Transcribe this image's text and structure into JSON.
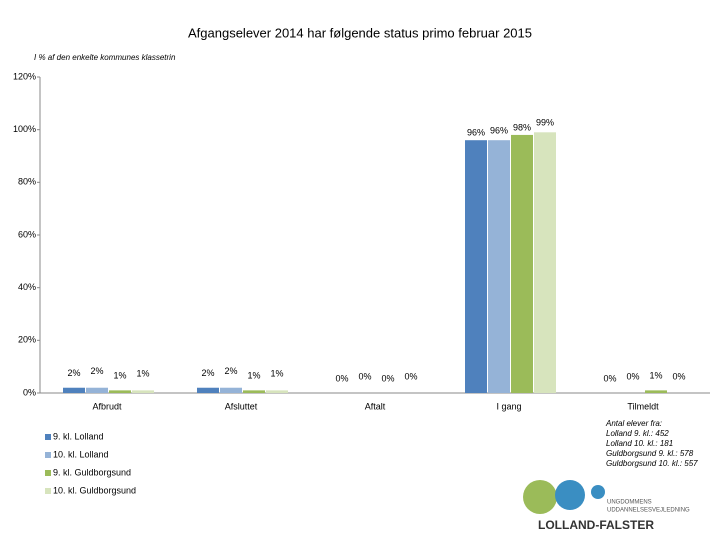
{
  "chart_data": {
    "type": "bar",
    "title": "Afgangselever 2014 har følgende status primo februar 2015",
    "subtitle": "I % af den enkelte kommunes klassetrin",
    "categories": [
      "Afbrudt",
      "Afsluttet",
      "Aftalt",
      "I gang",
      "Tilmeldt"
    ],
    "series": [
      {
        "name": "9. kl. Lolland",
        "color": "#4f81bd",
        "values": [
          2,
          2,
          0,
          96,
          0
        ],
        "value_labels": [
          "2%",
          "2%",
          "0%",
          "96%",
          "0%"
        ]
      },
      {
        "name": "10. kl. Lolland",
        "color": "#95b3d7",
        "values": [
          2,
          2,
          0,
          96,
          0
        ],
        "value_labels": [
          "2%",
          "2%",
          "0%",
          "96%",
          "0%"
        ]
      },
      {
        "name": "9. kl. Guldborgsund",
        "color": "#9bbb59",
        "values": [
          1,
          1,
          0,
          98,
          1
        ],
        "value_labels": [
          "1%",
          "1%",
          "0%",
          "98%",
          "1%"
        ]
      },
      {
        "name": "10. kl. Guldborgsund",
        "color": "#d7e4bd",
        "values": [
          1,
          1,
          0,
          99,
          0
        ],
        "value_labels": [
          "1%",
          "1%",
          "0%",
          "99%",
          "0%"
        ]
      }
    ],
    "ylim": [
      0,
      120
    ],
    "yticks": [
      {
        "value": 0,
        "label": "0%"
      },
      {
        "value": 20,
        "label": "20%"
      },
      {
        "value": 40,
        "label": "40%"
      },
      {
        "value": 60,
        "label": "60%"
      },
      {
        "value": 80,
        "label": "80%"
      },
      {
        "value": 100,
        "label": "100%"
      },
      {
        "value": 120,
        "label": "120%"
      }
    ],
    "grid": false,
    "legend": "bottom-left",
    "annotation": [
      "Antal elever fra:",
      "Lolland 9. kl.: 452",
      "Lolland 10. kl.: 181",
      "Guldborgsund 9. kl.: 578",
      "Guldborgsund 10. kl.: 557"
    ],
    "logo": {
      "line1": "UNGDOMMENS",
      "line2": "UDDANNELSESVEJLEDNING",
      "name": "LOLLAND-FALSTER"
    }
  }
}
